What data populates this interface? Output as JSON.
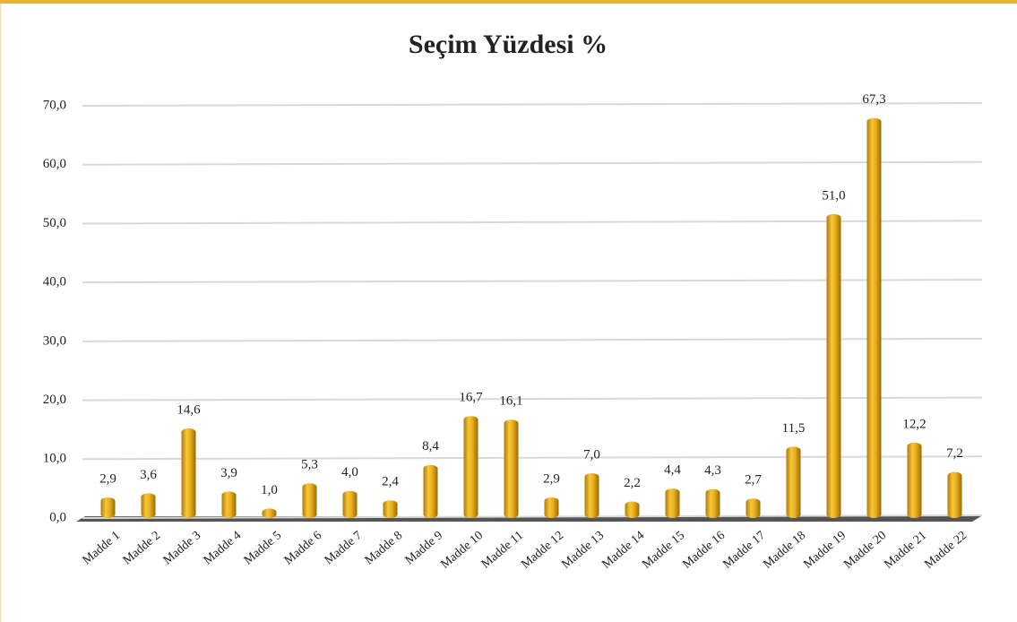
{
  "chart_data": {
    "type": "bar",
    "title": "Seçim Yüzdesi %",
    "categories": [
      "Madde 1",
      "Madde 2",
      "Madde 3",
      "Madde 4",
      "Madde 5",
      "Madde 6",
      "Madde 7",
      "Madde 8",
      "Madde 9",
      "Madde 10",
      "Madde 11",
      "Madde 12",
      "Madde 13",
      "Madde 14",
      "Madde 15",
      "Madde 16",
      "Madde 17",
      "Madde 18",
      "Madde 19",
      "Madde 20",
      "Madde 21",
      "Madde 22"
    ],
    "values": [
      2.9,
      3.6,
      14.6,
      3.9,
      1.0,
      5.3,
      4.0,
      2.4,
      8.4,
      16.7,
      16.1,
      2.9,
      7.0,
      2.2,
      4.4,
      4.3,
      2.7,
      11.5,
      51.0,
      67.3,
      12.2,
      7.2
    ],
    "value_labels": [
      "2,9",
      "3,6",
      "14,6",
      "3,9",
      "1,0",
      "5,3",
      "4,0",
      "2,4",
      "8,4",
      "16,7",
      "16,1",
      "2,9",
      "7,0",
      "2,2",
      "4,4",
      "4,3",
      "2,7",
      "11,5",
      "51,0",
      "67,3",
      "12,2",
      "7,2"
    ],
    "color": "#e6a817",
    "ylim": [
      0,
      70
    ],
    "yticks": [
      {
        "value": 0,
        "label": "0,0"
      },
      {
        "value": 10,
        "label": "10,0"
      },
      {
        "value": 20,
        "label": "20,0"
      },
      {
        "value": 30,
        "label": "30,0"
      },
      {
        "value": 40,
        "label": "40,0"
      },
      {
        "value": 50,
        "label": "50,0"
      },
      {
        "value": 60,
        "label": "60,0"
      },
      {
        "value": 70,
        "label": "70,0"
      }
    ],
    "grid": true
  }
}
